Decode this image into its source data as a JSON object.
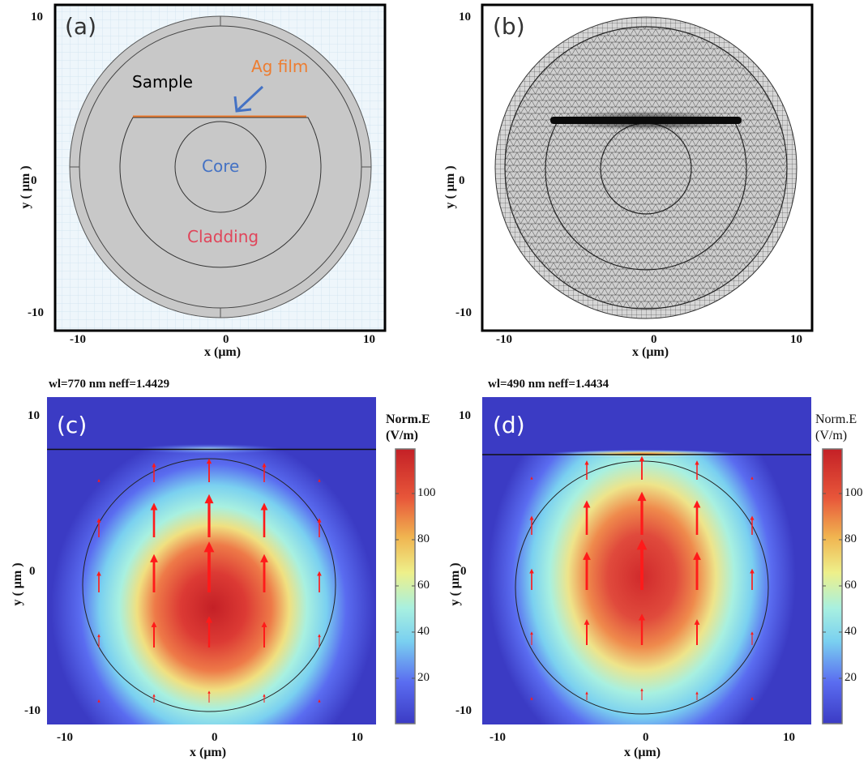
{
  "panels": {
    "a": {
      "letter": "(a)",
      "labels": {
        "sample": "Sample",
        "ag_film": "Ag film",
        "core": "Core",
        "cladding": "Cladding"
      },
      "colors": {
        "sample": "#000000",
        "ag_film": "#ed7d31",
        "core": "#4472c4",
        "cladding": "#e0455a",
        "fill": "#c8c8c8",
        "grid_bg": "#eef6fb"
      },
      "xticks": [
        "-10",
        "0",
        "10"
      ],
      "yticks": [
        "10",
        "0",
        "-10"
      ],
      "xlabel": "x  (μm)",
      "ylabel": "y ( μm )"
    },
    "b": {
      "letter": "(b)",
      "xticks": [
        "-10",
        "0",
        "10"
      ],
      "yticks": [
        "10",
        "0",
        "-10"
      ],
      "xlabel": "x  (μm)",
      "ylabel": "y ( μm )"
    },
    "c": {
      "letter": "(c)",
      "caption": "wl=770 nm neff=1.4429",
      "colorbar_title_1": "Norm.E",
      "colorbar_title_2": "(V/m)",
      "colorbar_ticks": [
        "100",
        "80",
        "60",
        "40",
        "20"
      ],
      "xticks": [
        "-10",
        "0",
        "10"
      ],
      "yticks": [
        "10",
        "0",
        "-10"
      ],
      "xlabel": "x  (μm)",
      "ylabel": "y ( μm )"
    },
    "d": {
      "letter": "(d)",
      "caption": "wl=490 nm neff=1.4434",
      "colorbar_title_1": "Norm.E",
      "colorbar_title_2": "(V/m)",
      "colorbar_ticks": [
        "100",
        "80",
        "60",
        "40",
        "20"
      ],
      "xticks": [
        "-10",
        "0",
        "10"
      ],
      "yticks": [
        "10",
        "0",
        "-10"
      ],
      "xlabel": "x  (μm)",
      "ylabel": "y ( μm )"
    }
  },
  "colormap": [
    "#3b3bc4",
    "#5a6cf0",
    "#7fd8f0",
    "#a8f0e0",
    "#eef08a",
    "#f0b450",
    "#e8573a",
    "#c42026"
  ]
}
